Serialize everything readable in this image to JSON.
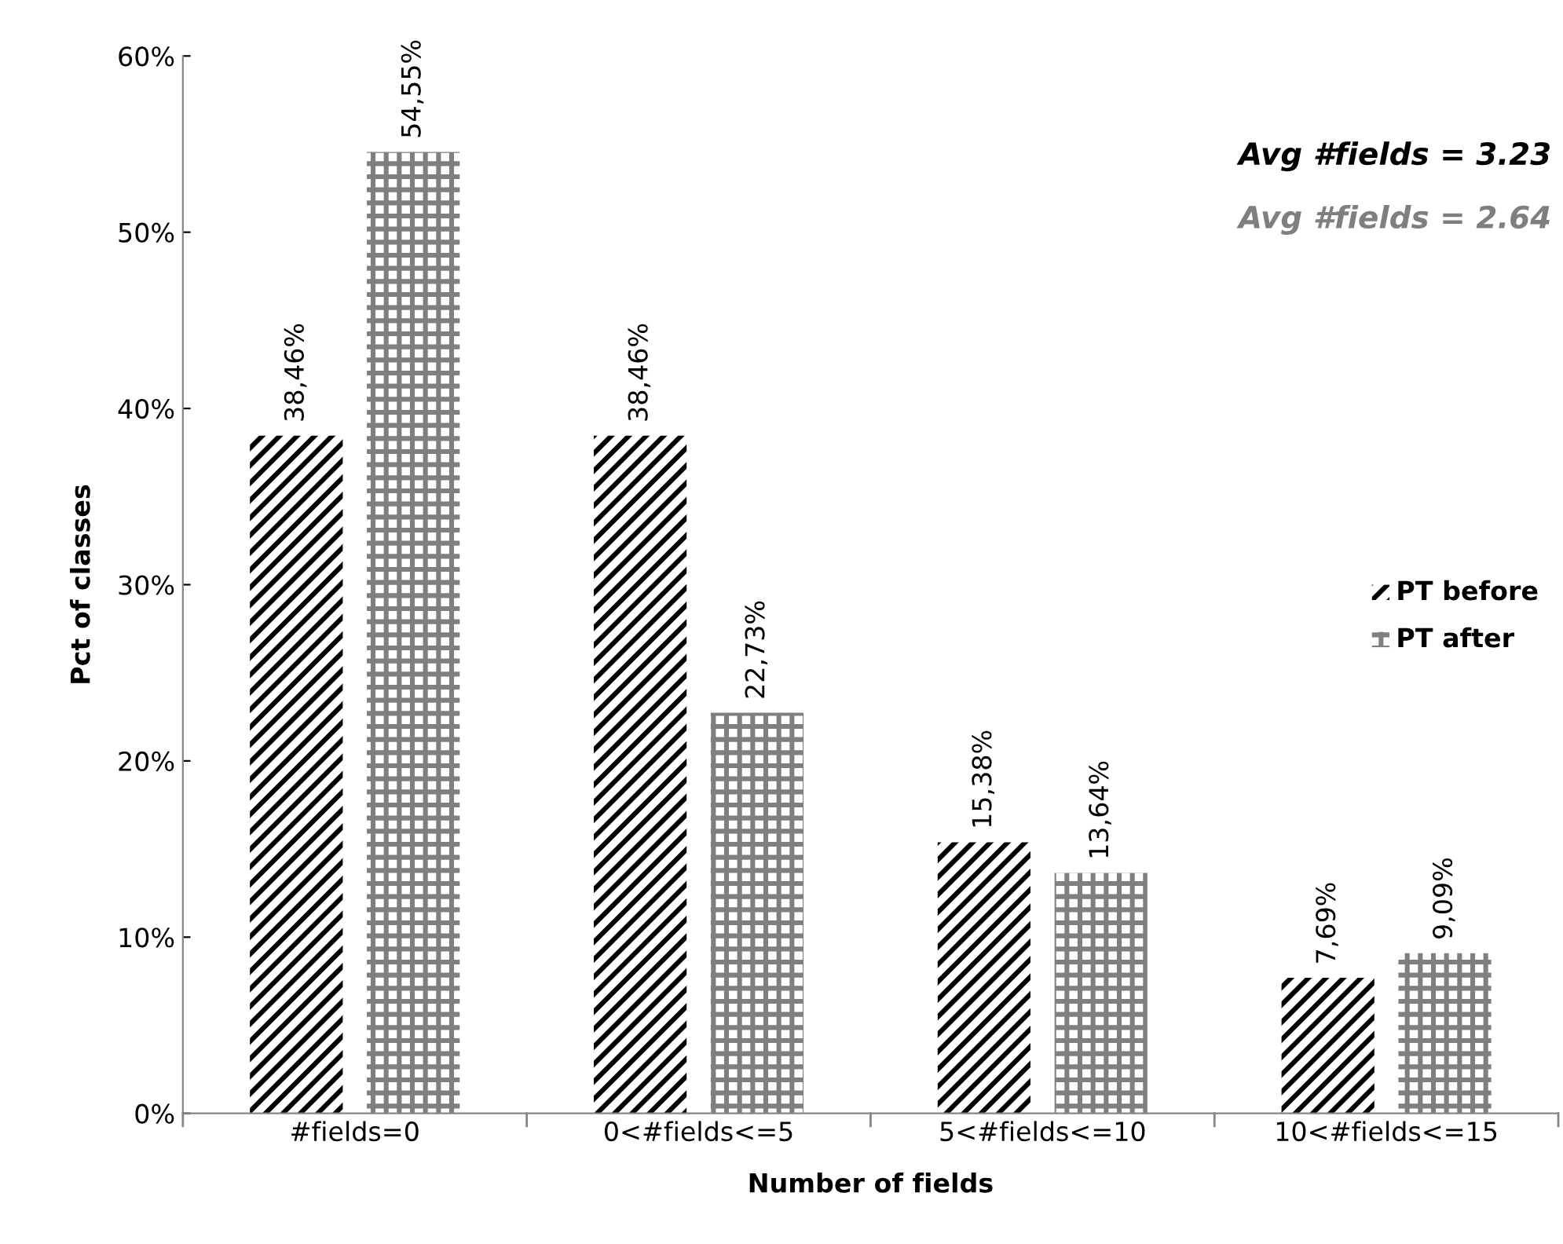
{
  "chart_data": {
    "type": "bar",
    "xlabel": "Number of fields",
    "ylabel": "Pct of classes",
    "categories": [
      "#fields=0",
      "0<#fields<=5",
      "5<#fields<=10",
      "10<#fields<=15"
    ],
    "series": [
      {
        "name": "PT before",
        "color": "#000000",
        "values": [
          38.46,
          38.46,
          15.38,
          7.69
        ],
        "value_labels": [
          "38,46%",
          "38,46%",
          "15,38%",
          "7,69%"
        ]
      },
      {
        "name": "PT after",
        "color": "#7f7f7f",
        "values": [
          54.55,
          22.73,
          13.64,
          9.09
        ],
        "value_labels": [
          "54,55%",
          "22,73%",
          "13,64%",
          "9,09%"
        ]
      }
    ],
    "ylim": [
      0,
      60
    ],
    "yticks": [
      {
        "value": 0,
        "label": "0%"
      },
      {
        "value": 10,
        "label": "10%"
      },
      {
        "value": 20,
        "label": "20%"
      },
      {
        "value": 30,
        "label": "30%"
      },
      {
        "value": 40,
        "label": "40%"
      },
      {
        "value": 50,
        "label": "50%"
      },
      {
        "value": 60,
        "label": "60%"
      }
    ],
    "annotations": [
      "Avg #fields = 3.23",
      "Avg #fields = 2.64"
    ],
    "legend": "right",
    "grid": false
  }
}
